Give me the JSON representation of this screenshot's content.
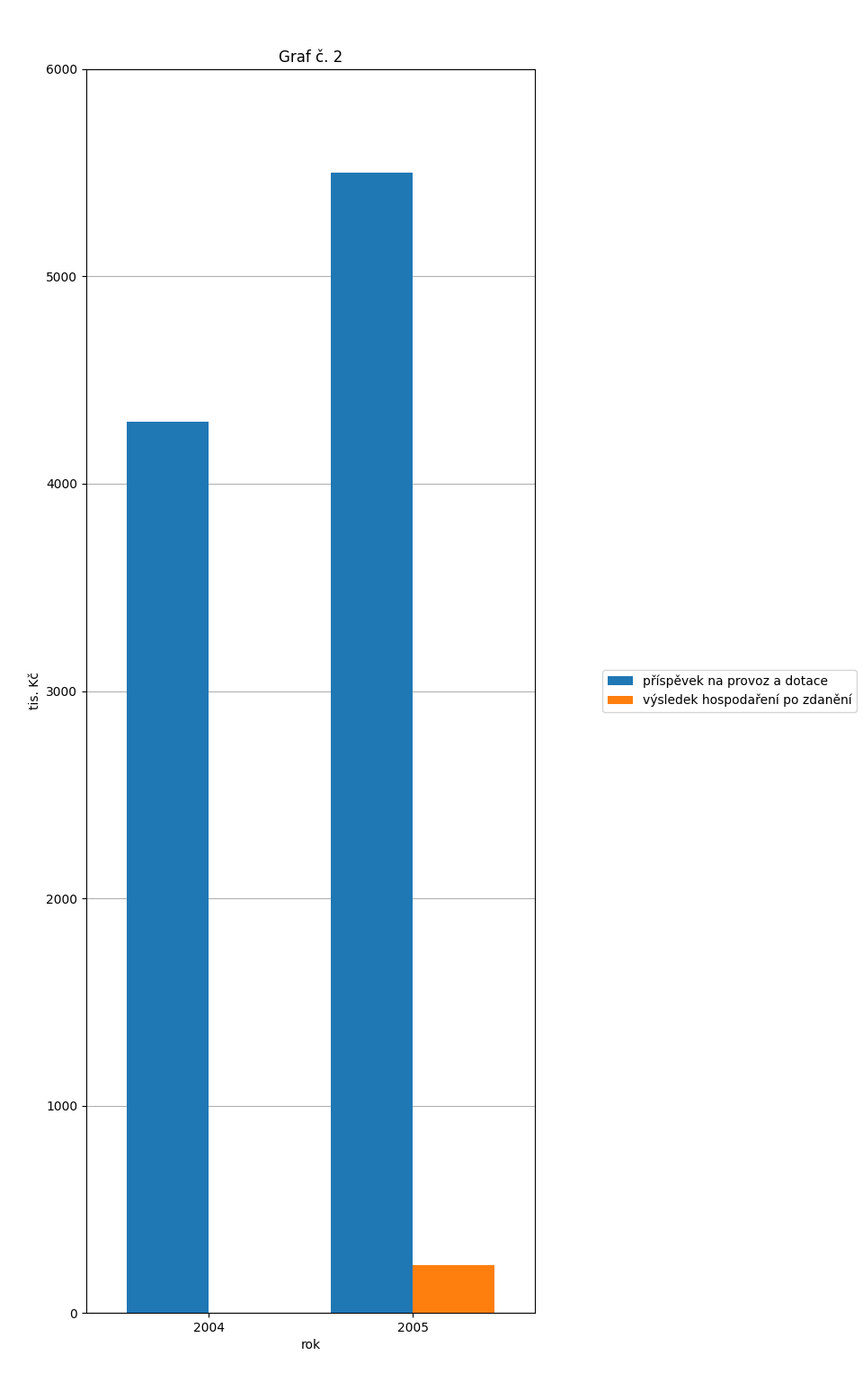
{
  "chart_data": {
    "type": "bar",
    "title": "Graf č. 2",
    "categories": [
      "2004",
      "2005"
    ],
    "series": [
      {
        "name": "příspěvek na provoz a dotace",
        "values": [
          4300,
          5500
        ]
      },
      {
        "name": "výsledek hospodaření po zdanění",
        "values": [
          0,
          230
        ]
      }
    ],
    "xlabel": "rok",
    "ylabel": "tis. Kč",
    "ylim": [
      0,
      6000
    ],
    "yticks": [
      0,
      1000,
      2000,
      3000,
      4000,
      5000,
      6000
    ],
    "grid": true,
    "legend": "right"
  }
}
